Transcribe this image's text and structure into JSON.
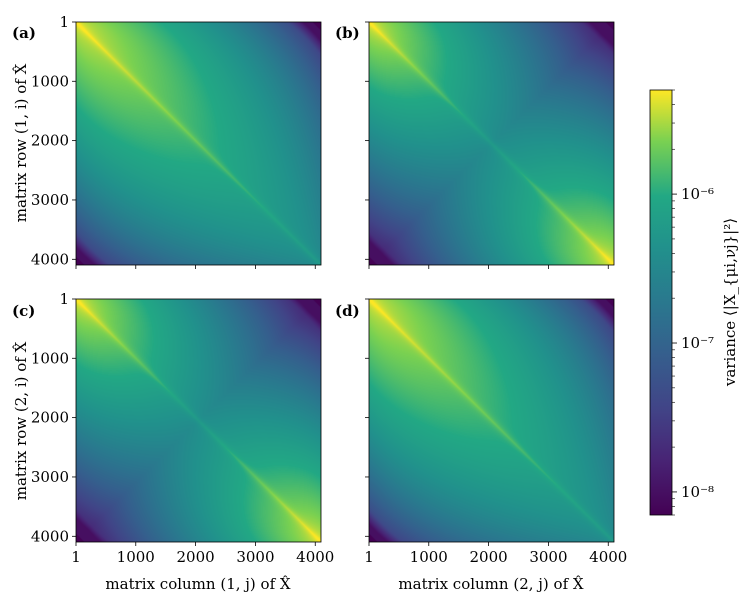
{
  "chart_data": [
    {
      "type": "heatmap",
      "panel_label": "(a)",
      "xlabel": "",
      "ylabel": "matrix row (1, i) of X̂",
      "x_ticks": [
        "1",
        "1000",
        "2000",
        "3000",
        "4000"
      ],
      "y_ticks": [
        "1",
        "1000",
        "2000",
        "3000",
        "4000"
      ],
      "x_range": [
        1,
        4096
      ],
      "y_range": [
        1,
        4096
      ],
      "diag_end_value_low": 1e-07,
      "diag_end_value_high": 5e-06,
      "diag_peak": "top-left"
    },
    {
      "type": "heatmap",
      "panel_label": "(b)",
      "xlabel": "",
      "ylabel": "",
      "x_ticks": [],
      "y_ticks": [],
      "x_range": [
        1,
        4096
      ],
      "y_range": [
        1,
        4096
      ],
      "diag_peak": "both-ends"
    },
    {
      "type": "heatmap",
      "panel_label": "(c)",
      "xlabel": "matrix column (1, j) of X̂",
      "ylabel": "matrix row (2, i) of X̂",
      "x_ticks": [
        "1",
        "1000",
        "2000",
        "3000",
        "4000"
      ],
      "y_ticks": [
        "1",
        "1000",
        "2000",
        "3000",
        "4000"
      ],
      "x_range": [
        1,
        4096
      ],
      "y_range": [
        1,
        4096
      ],
      "diag_peak": "both-ends"
    },
    {
      "type": "heatmap",
      "panel_label": "(d)",
      "xlabel": "matrix column (2, j) of X̂",
      "ylabel": "",
      "x_ticks": [
        "1",
        "1000",
        "2000",
        "3000",
        "4000"
      ],
      "y_ticks": [],
      "x_range": [
        1,
        4096
      ],
      "y_range": [
        1,
        4096
      ],
      "diag_peak": "top-left"
    }
  ],
  "colorbar": {
    "label": "variance ⟨|X_{μi,νj}|²⟩",
    "scale": "log",
    "range": [
      7e-09,
      5e-06
    ],
    "ticks": [
      "10⁻⁶",
      "10⁻⁷",
      "10⁻⁸"
    ],
    "colormap": "viridis"
  }
}
